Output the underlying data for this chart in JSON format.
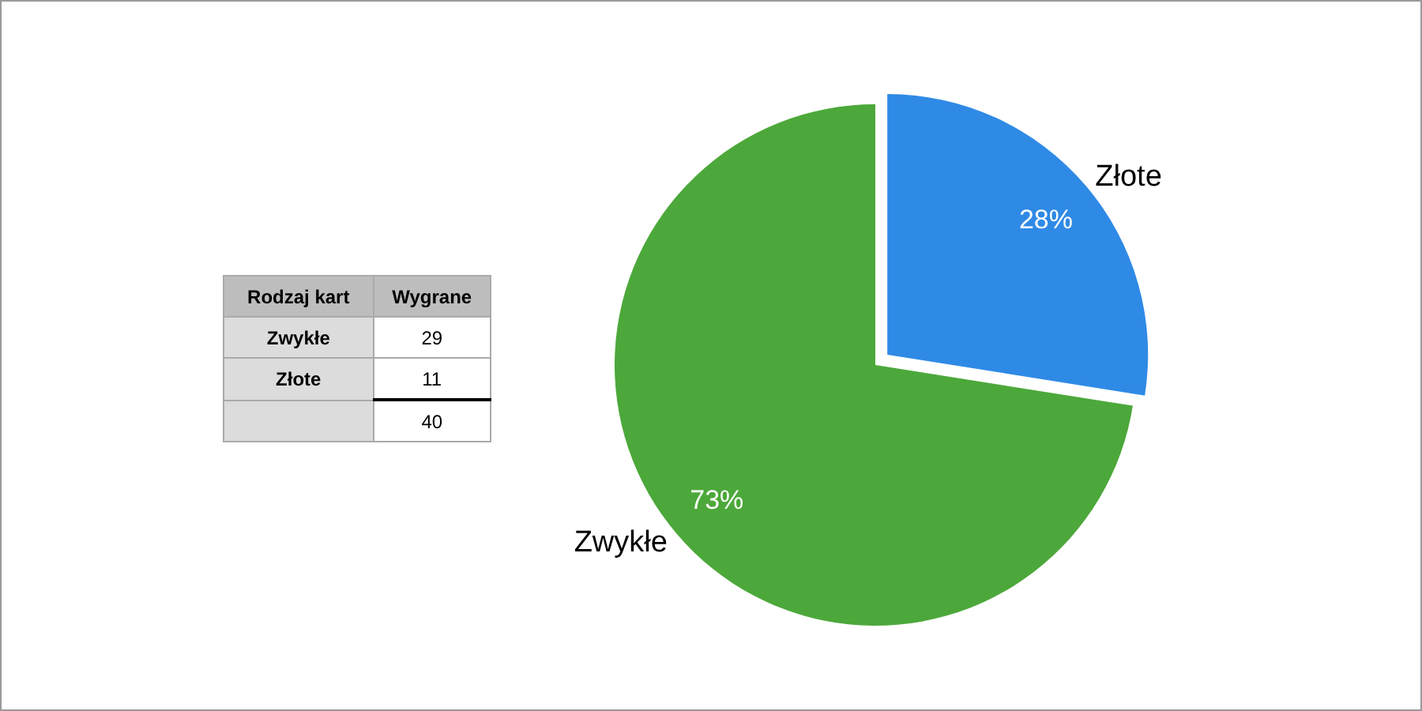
{
  "chart_data": [
    {
      "type": "pie",
      "categories": [
        "Zwykłe",
        "Złote"
      ],
      "values": [
        72.5,
        27.5
      ],
      "colors": [
        "#4ca83a",
        "#2f8ae6"
      ],
      "value_labels": [
        "73%",
        "28%"
      ],
      "legend": false
    },
    {
      "type": "other",
      "categories": [
        "Zwykłe",
        "Złote"
      ],
      "value_labels": [
        "29",
        "11"
      ],
      "annotations": [
        "Rodzaj kart",
        "Wygrane"
      ],
      "totals": [
        "40"
      ]
    }
  ]
}
